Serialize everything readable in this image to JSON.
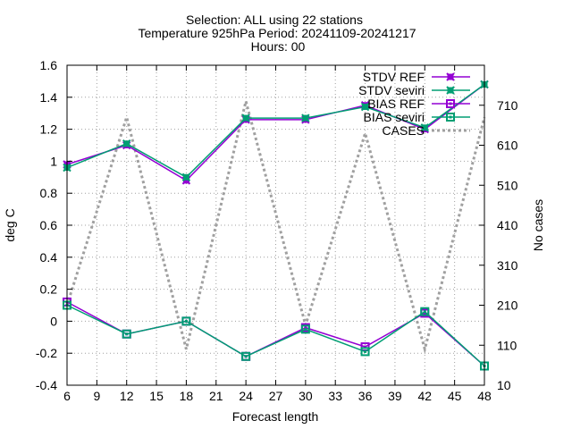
{
  "title": {
    "line1": "Selection: ALL using    22 stations",
    "line2": "Temperature 925hPa   Period: 20241109-20241217",
    "line3": "Hours: 00"
  },
  "chart_data": {
    "type": "line",
    "title": "Selection: ALL using    22 stations / Temperature 925hPa   Period: 20241109-20241217 / Hours: 00",
    "xlabel": "Forecast length",
    "ylabel": "deg C",
    "y2label": "No cases",
    "xlim": [
      6,
      48
    ],
    "ylim": [
      -0.4,
      1.6
    ],
    "y2lim": [
      10,
      810
    ],
    "x_ticks": [
      6,
      9,
      12,
      15,
      18,
      21,
      24,
      27,
      30,
      33,
      36,
      39,
      42,
      45,
      48
    ],
    "y_ticks": [
      -0.4,
      -0.2,
      0,
      0.2,
      0.4,
      0.6,
      0.8,
      1,
      1.2,
      1.4,
      1.6
    ],
    "y_tick_labels": [
      "-0.4",
      "-0.2",
      "0",
      "0.2",
      "0.4",
      "0.6",
      "0.8",
      "1",
      "1.2",
      "1.4",
      "1.6"
    ],
    "y2_ticks": [
      10,
      110,
      210,
      310,
      410,
      510,
      610,
      710
    ],
    "grid": true,
    "legend_position": "top-right",
    "x": [
      6,
      12,
      18,
      24,
      30,
      36,
      42,
      48
    ],
    "series": [
      {
        "name": "STDV REF",
        "axis": "left",
        "color": "#9400d3",
        "marker": "x-box",
        "style": "solid",
        "values": [
          0.98,
          1.1,
          0.88,
          1.26,
          1.26,
          1.35,
          1.2,
          1.48
        ]
      },
      {
        "name": "STDV seviri",
        "axis": "left",
        "color": "#009e73",
        "marker": "x-box",
        "style": "solid",
        "values": [
          0.96,
          1.11,
          0.9,
          1.27,
          1.27,
          1.34,
          1.21,
          1.48
        ]
      },
      {
        "name": "BIAS REF",
        "axis": "left",
        "color": "#9400d3",
        "marker": "square",
        "style": "solid",
        "values": [
          0.12,
          -0.08,
          0.0,
          -0.22,
          -0.04,
          -0.16,
          0.05,
          -0.28
        ]
      },
      {
        "name": "BIAS seviri",
        "axis": "left",
        "color": "#009e73",
        "marker": "square",
        "style": "solid",
        "values": [
          0.1,
          -0.08,
          0.0,
          -0.22,
          -0.05,
          -0.19,
          0.06,
          -0.28
        ]
      },
      {
        "name": "CASES",
        "axis": "right",
        "color": "#a0a0a0",
        "marker": "none",
        "style": "dotted",
        "values": [
          210,
          680,
          100,
          720,
          160,
          640,
          100,
          680
        ]
      }
    ]
  }
}
